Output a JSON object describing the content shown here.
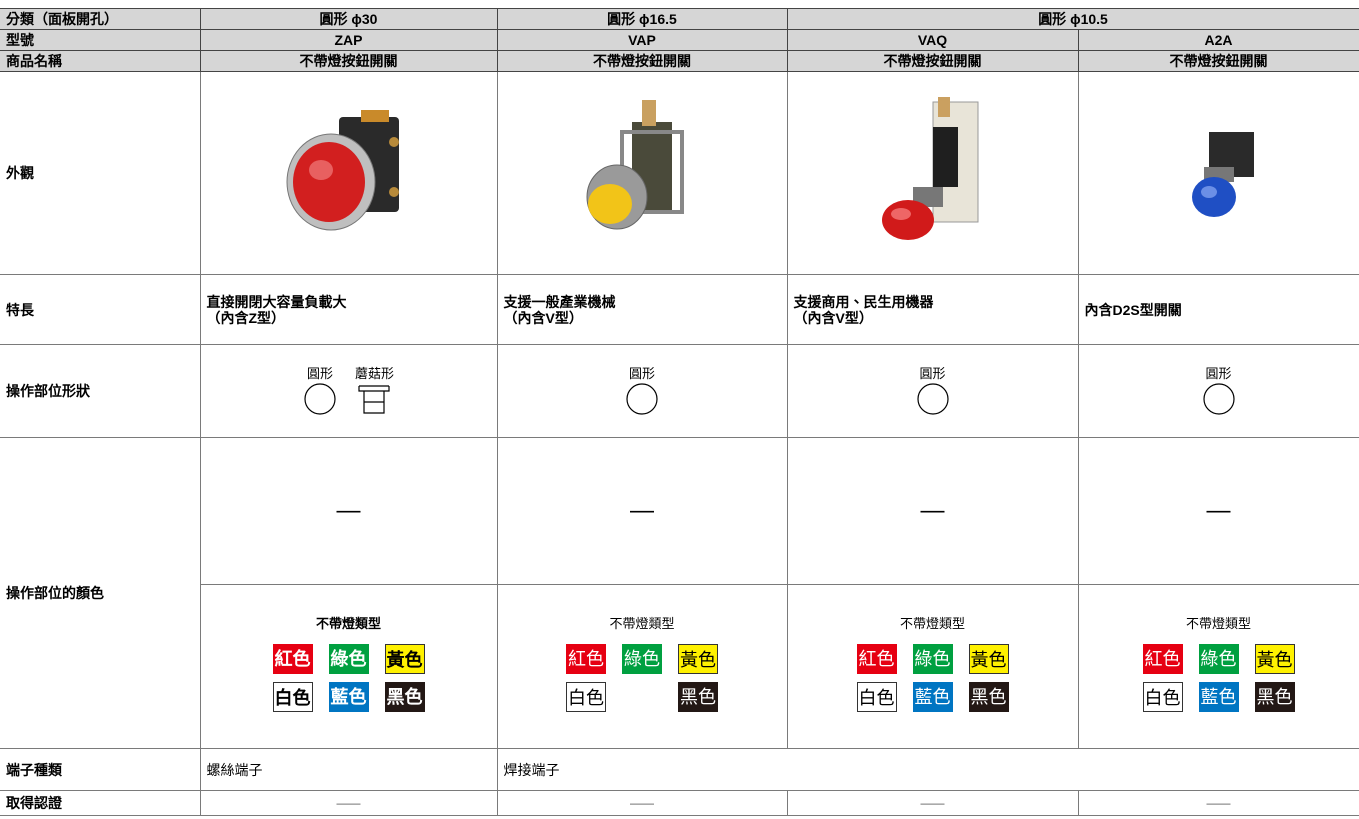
{
  "table": {
    "header": {
      "label": "分類（面板開孔）",
      "categories": [
        "圓形 ϕ30",
        "圓形 ϕ16.5",
        "圓形 ϕ10.5"
      ]
    },
    "model": {
      "label": "型號",
      "values": [
        "ZAP",
        "VAP",
        "VAQ",
        "A2A"
      ]
    },
    "product_name": {
      "label": "商品名稱",
      "values": [
        "不帶燈按鈕開關",
        "不帶燈按鈕開關",
        "不帶燈按鈕開關",
        "不帶燈按鈕開關"
      ]
    },
    "appearance": {
      "label": "外觀"
    },
    "features": {
      "label": "特長",
      "values": [
        [
          "直接開閉大容量負載大",
          "（內含Z型）"
        ],
        [
          "支援一般產業機械",
          "（內含V型）"
        ],
        [
          "支援商用、民生用機器",
          "（內含V型）"
        ],
        [
          "內含D2S型開關"
        ]
      ]
    },
    "shape": {
      "label": "操作部位形狀",
      "values": [
        [
          "圓形",
          "蘑菇形"
        ],
        [
          "圓形"
        ],
        [
          "圓形"
        ],
        [
          "圓形"
        ]
      ]
    },
    "color": {
      "label": "操作部位的顏色",
      "lit": [
        "—",
        "—",
        "—",
        "—"
      ],
      "unlit_title": [
        "不帶燈類型",
        "不帶燈類型",
        "不帶燈類型",
        "不帶燈類型"
      ],
      "unlit": [
        [
          [
            "紅色",
            "綠色",
            "黃色"
          ],
          [
            "白色",
            "藍色",
            "黑色"
          ]
        ],
        [
          [
            "紅色",
            "綠色",
            "黃色"
          ],
          [
            "白色",
            null,
            "黑色"
          ]
        ],
        [
          [
            "紅色",
            "綠色",
            "黃色"
          ],
          [
            "白色",
            "藍色",
            "黑色"
          ]
        ],
        [
          [
            "紅色",
            "綠色",
            "黃色"
          ],
          [
            "白色",
            "藍色",
            "黑色"
          ]
        ]
      ]
    },
    "terminal": {
      "label": "端子種類",
      "values": [
        "螺絲端子",
        "焊接端子"
      ]
    },
    "certification": {
      "label": "取得認證",
      "values": [
        "——",
        "——",
        "——",
        "——"
      ]
    }
  }
}
